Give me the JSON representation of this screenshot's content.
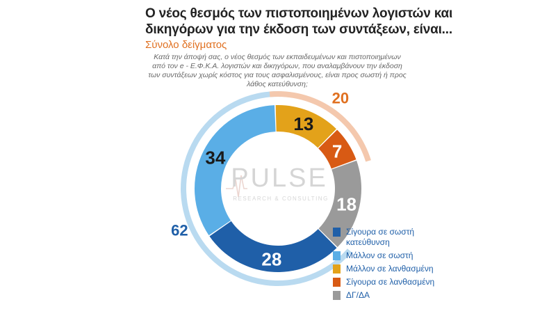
{
  "title": "Ο νέος θεσμός των πιστοποιημένων λογιστών και δικηγόρων για την έκδοση των συντάξεων, είναι...",
  "subtitle": "Σύνολο δείγματος",
  "question": "Κατά την άποψή σας, ο νέος θεσμός των εκπαιδευμένων και πιστοποιημένων από τον e - Ε.Φ.Κ.Α. λογιστών και δικηγόρων, που αναλαμβάνουν την έκδοση των συντάξεων χωρίς κόστος για τους ασφαλισμένους, είναι προς σωστή ή προς λάθος κατεύθυνση;",
  "watermark": {
    "brand": "PULSE",
    "tagline": "RESEARCH & CONSULTING"
  },
  "colors": {
    "dark_blue": "#1f5fa8",
    "light_blue": "#5aaee6",
    "outer_light_blue": "#b9daf0",
    "orange_gold": "#e3a21a",
    "dark_orange": "#d85a14",
    "outer_orange": "#f4c8ad",
    "gray": "#9a9a9a",
    "group_correct_label": "#1f5fa8",
    "group_wrong_label": "#e07020"
  },
  "chart_data": {
    "type": "donut",
    "categories": [
      "Μάλλον σε λανθασμένη",
      "Σίγουρα σε λανθασμένη",
      "ΔΓ/ΔΑ",
      "Σίγουρα σε σωστή κατεύθυνση",
      "Μάλλον σε σωστή"
    ],
    "values": [
      13,
      7,
      18,
      28,
      34
    ],
    "value_labels": [
      "13",
      "7",
      "18",
      "28",
      "34"
    ],
    "colors": [
      "#e3a21a",
      "#d85a14",
      "#9a9a9a",
      "#1f5fa8",
      "#5aaee6"
    ],
    "groups": [
      {
        "total": 62,
        "label": "62",
        "color": "#b9daf0",
        "label_color": "#1f5fa8",
        "members": [
          "Σίγουρα σε σωστή κατεύθυνση",
          "Μάλλον σε σωστή"
        ]
      },
      {
        "total": 20,
        "label": "20",
        "color": "#f4c8ad",
        "label_color": "#e07020",
        "members": [
          "Μάλλον σε λανθασμένη",
          "Σίγουρα σε λανθασμένη"
        ]
      }
    ],
    "legend": {
      "position": "bottom-right",
      "items": [
        {
          "label": "Σίγουρα σε σωστή κατεύθυνση",
          "color": "#1f5fa8"
        },
        {
          "label": "Μάλλον σε σωστή",
          "color": "#5aaee6"
        },
        {
          "label": "Μάλλον σε λανθασμένη",
          "color": "#e3a21a"
        },
        {
          "label": "Σίγουρα σε λανθασμένη",
          "color": "#d85a14"
        },
        {
          "label": "ΔΓ/ΔΑ",
          "color": "#9a9a9a"
        }
      ]
    }
  }
}
